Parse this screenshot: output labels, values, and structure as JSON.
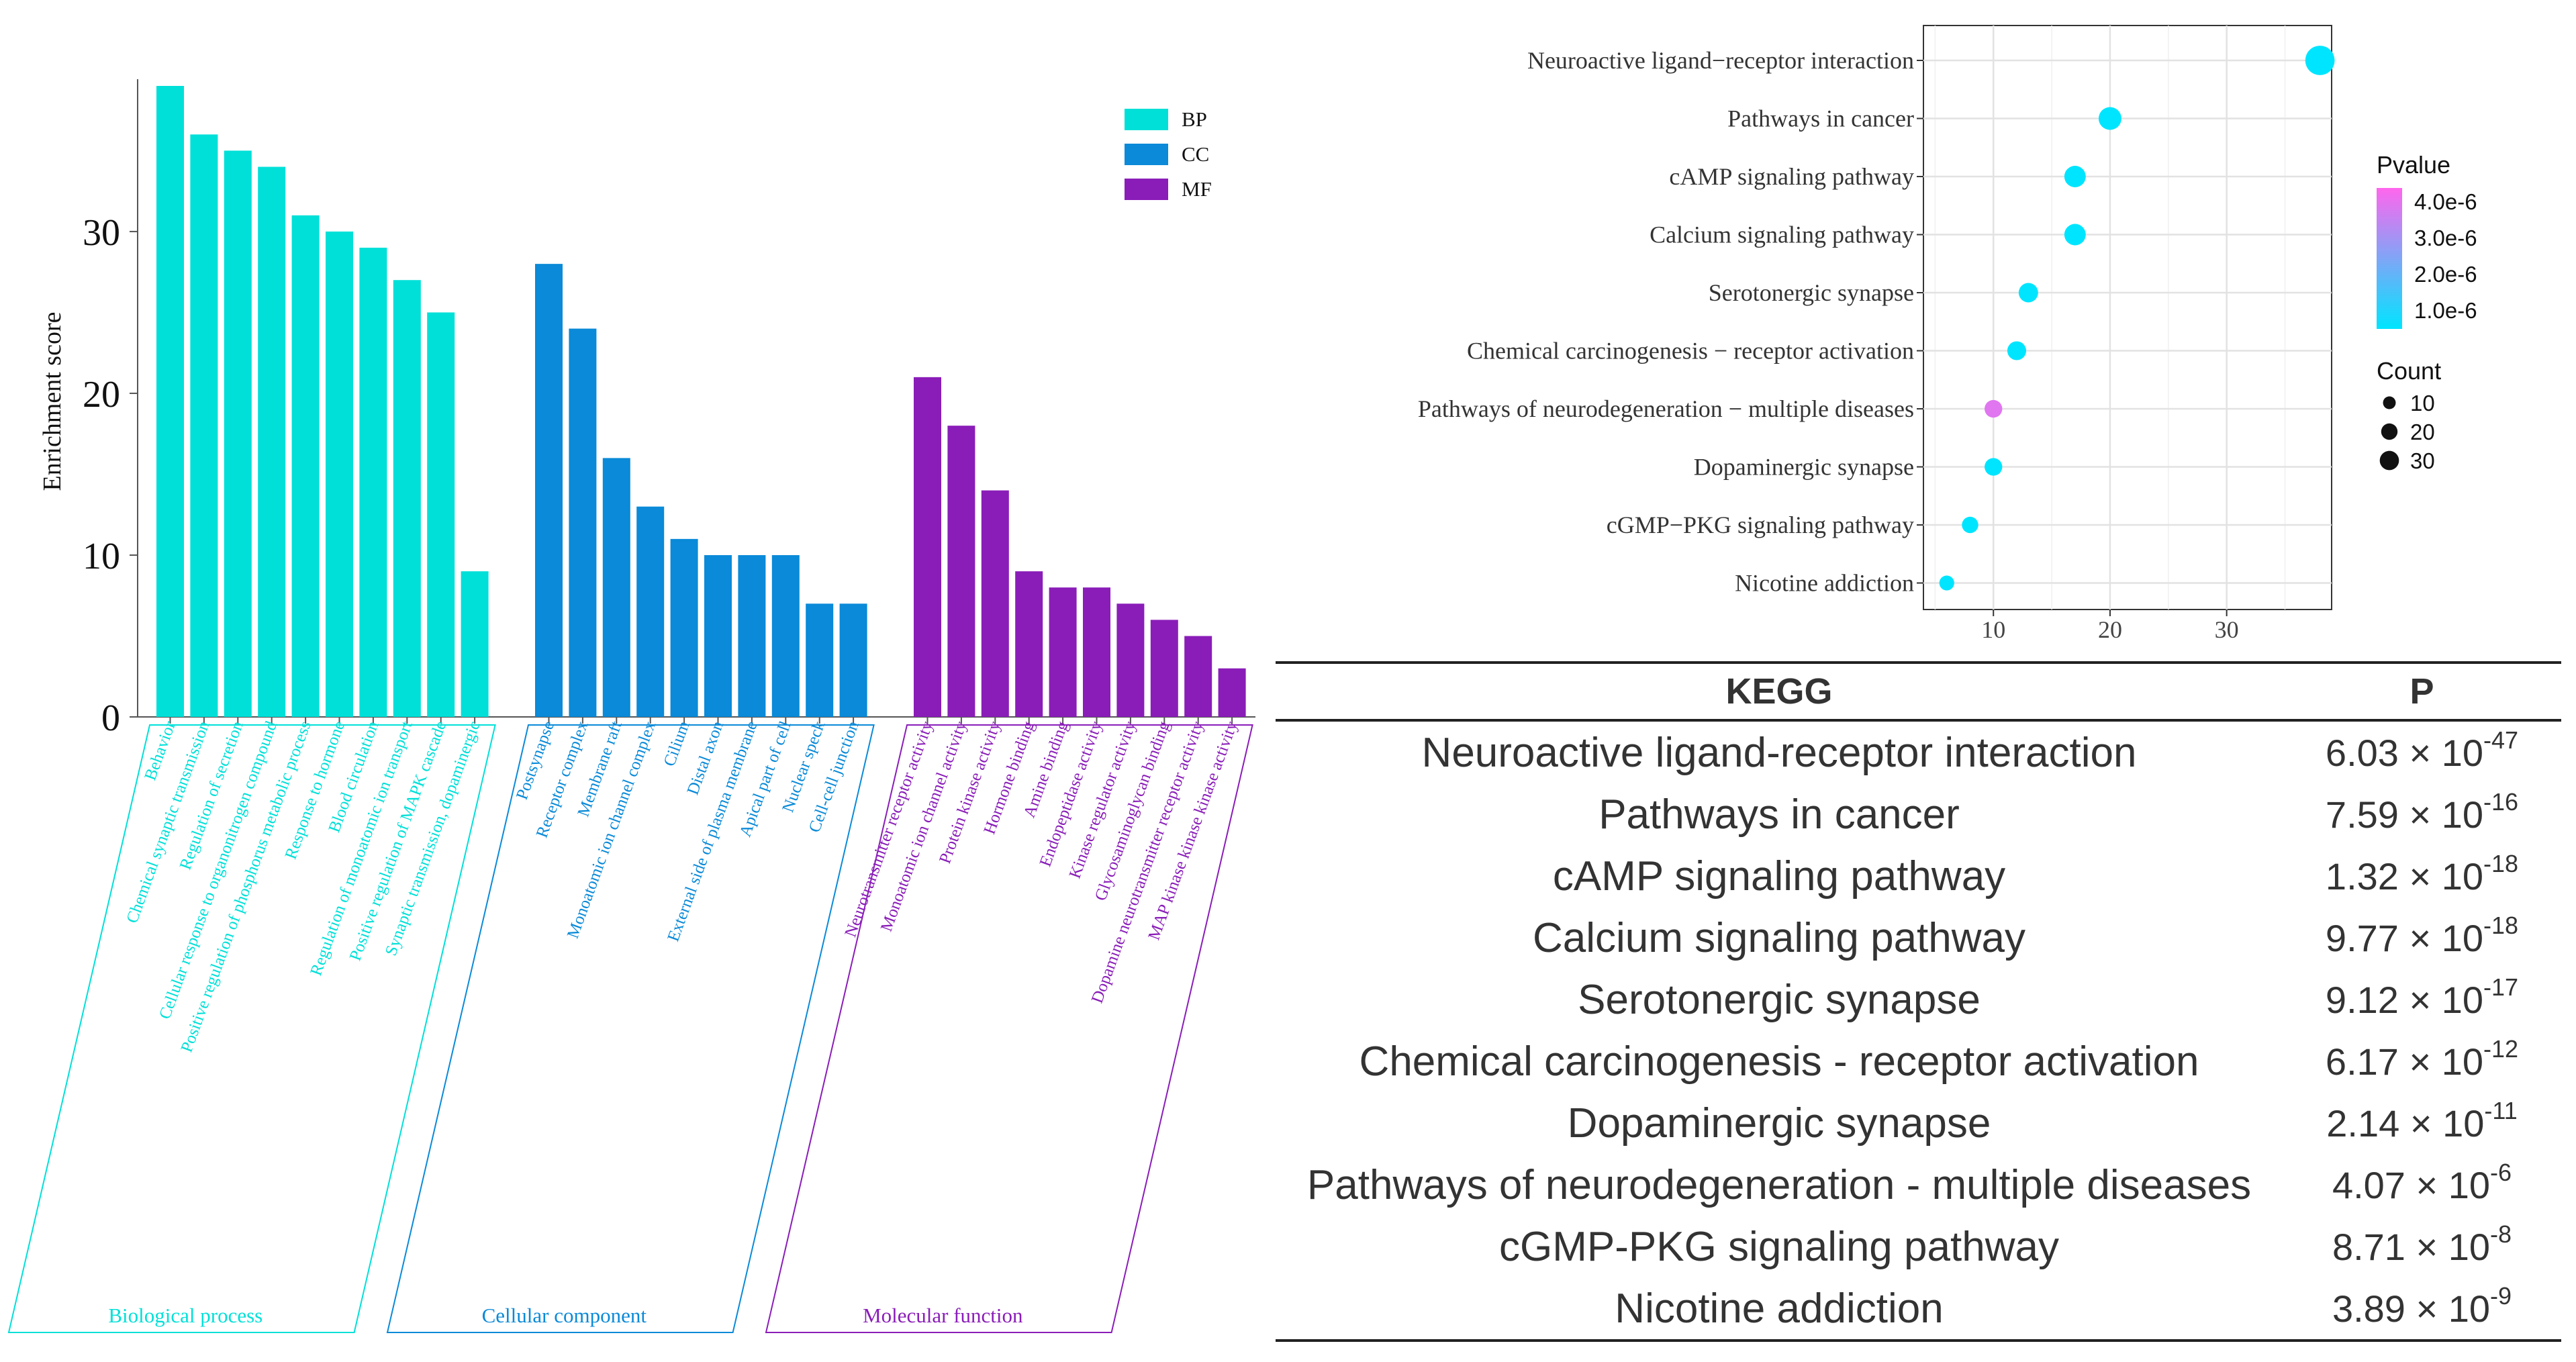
{
  "colors": {
    "BP": "#00e0d8",
    "CC": "#0a8ad8",
    "MF": "#8a1db8"
  },
  "chart_data": [
    {
      "type": "bar",
      "ylabel": "Enrichment score",
      "ylim": [
        0,
        39
      ],
      "yticks": [
        "0",
        "10",
        "20",
        "30"
      ],
      "grid": false,
      "legend": [
        {
          "key": "BP",
          "label": "BP"
        },
        {
          "key": "CC",
          "label": "CC"
        },
        {
          "key": "MF",
          "label": "MF"
        }
      ],
      "groups": [
        {
          "key": "BP",
          "name": "Biological process",
          "categories": [
            "Behavior",
            "Chemical synaptic transmission",
            "Regulation of secretion",
            "Cellular response to organonitrogen compound",
            "Positive regulation of phosphorus metabolic process",
            "Response to hormone",
            "Blood circulation",
            "Regulation of monoatomic ion transport",
            "Positive regulation of MAPK cascade",
            "Synaptic transmission, dopaminergic"
          ],
          "values": [
            39,
            36,
            35,
            34,
            31,
            30,
            29,
            27,
            25,
            9
          ]
        },
        {
          "key": "CC",
          "name": "Cellular component",
          "categories": [
            "Postsynapse",
            "Receptor complex",
            "Membrane raft",
            "Monoatomic ion channel complex",
            "Cilium",
            "Distal axon",
            "External side of plasma membrane",
            "Apical part of cell",
            "Nuclear speck",
            "Cell-cell junction"
          ],
          "values": [
            28,
            24,
            16,
            13,
            11,
            10,
            10,
            10,
            7,
            7
          ]
        },
        {
          "key": "MF",
          "name": "Molecular function",
          "categories": [
            "Neurotransmitter receptor activity",
            "Monoatomic ion channel activity",
            "Protein kinase activity",
            "Hormone binding",
            "Amine binding",
            "Endopeptidase activity",
            "Kinase regulator activity",
            "Glycosaminoglycan binding",
            "Dopamine neurotransmitter receptor activity",
            "MAP kinase kinase kinase activity"
          ],
          "values": [
            21,
            18,
            14,
            9,
            8,
            8,
            7,
            6,
            5,
            3
          ]
        }
      ]
    },
    {
      "type": "scatter",
      "categories": [
        "Neuroactive ligand−receptor interaction",
        "Pathways in cancer",
        "cAMP signaling pathway",
        "Calcium signaling pathway",
        "Serotonergic synapse",
        "Chemical carcinogenesis − receptor activation",
        "Pathways of neurodegeneration − multiple diseases",
        "Dopaminergic synapse",
        "cGMP−PKG signaling pathway",
        "Nicotine addiction"
      ],
      "x": [
        38,
        20,
        17,
        17,
        13,
        12,
        10,
        10,
        8,
        6
      ],
      "count": [
        38,
        20,
        17,
        17,
        13,
        12,
        10,
        10,
        8,
        6
      ],
      "pvalue": [
        6.03e-47,
        7.59e-16,
        1.32e-18,
        9.77e-18,
        9.12e-17,
        6.17e-12,
        4.07e-06,
        2.14e-11,
        8.71e-08,
        3.89e-09
      ],
      "xlim": [
        4,
        39
      ],
      "xticks": [
        "10",
        "20",
        "30"
      ],
      "xtick_values": [
        10,
        20,
        30
      ],
      "grid": true,
      "color_legend": {
        "title": "Pvalue",
        "labels": [
          "4.0e-6",
          "3.0e-6",
          "2.0e-6",
          "1.0e-6"
        ],
        "low_color": "#00e5ff",
        "high_color": "#ff66ee"
      },
      "size_legend": {
        "title": "Count",
        "labels": [
          "10",
          "20",
          "30"
        ],
        "values": [
          10,
          20,
          30
        ]
      }
    }
  ],
  "table": {
    "headers": [
      "KEGG",
      "P"
    ],
    "rows": [
      {
        "term": "Neuroactive ligand-receptor interaction",
        "mant": "6.03 × 10",
        "exp": "-47"
      },
      {
        "term": "Pathways in cancer",
        "mant": "7.59 × 10",
        "exp": "-16"
      },
      {
        "term": "cAMP signaling pathway",
        "mant": "1.32 × 10",
        "exp": "-18"
      },
      {
        "term": "Calcium signaling pathway",
        "mant": "9.77 × 10",
        "exp": "-18"
      },
      {
        "term": "Serotonergic synapse",
        "mant": "9.12 × 10",
        "exp": "-17"
      },
      {
        "term": "Chemical carcinogenesis - receptor activation",
        "mant": "6.17 × 10",
        "exp": "-12"
      },
      {
        "term": "Dopaminergic synapse",
        "mant": "2.14 × 10",
        "exp": "-11"
      },
      {
        "term": "Pathways of neurodegeneration - multiple diseases",
        "mant": "4.07 × 10",
        "exp": "-6"
      },
      {
        "term": "cGMP-PKG signaling pathway",
        "mant": "8.71 × 10",
        "exp": "-8"
      },
      {
        "term": "Nicotine addiction",
        "mant": "3.89 × 10",
        "exp": "-9"
      }
    ]
  }
}
